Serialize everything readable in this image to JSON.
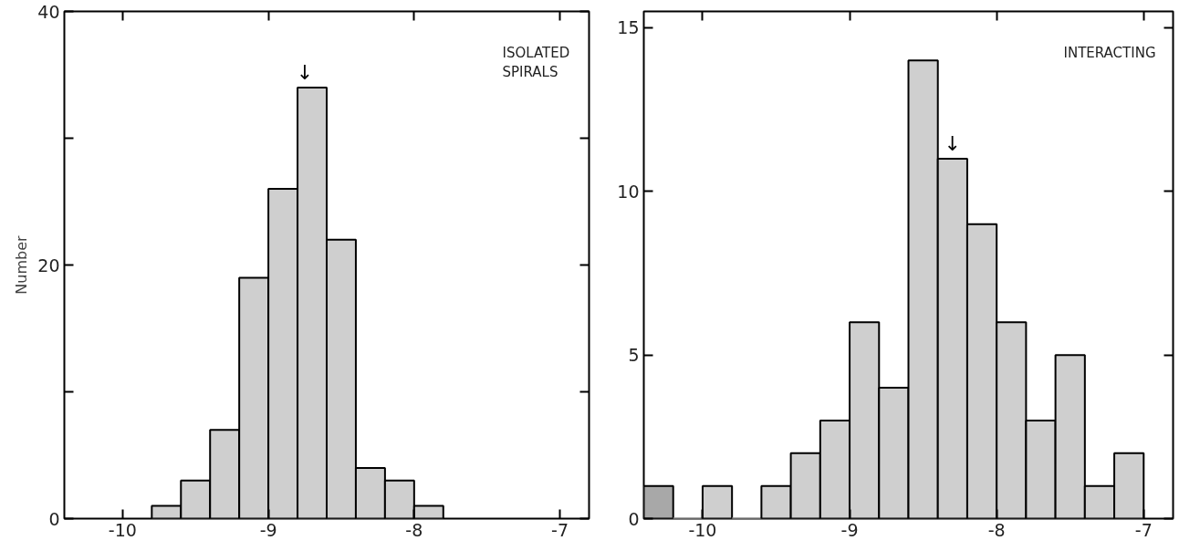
{
  "chart_data": [
    {
      "type": "histogram",
      "ylabel": "Number",
      "bins": [
        -9.8,
        -9.6,
        -9.4,
        -9.2,
        -9.0,
        -8.8,
        -8.6,
        -8.4,
        -8.2,
        -8.0,
        -7.8
      ],
      "values": [
        1,
        3,
        7,
        19,
        26,
        34,
        22,
        4,
        3,
        1
      ],
      "color": "#cfcfcf",
      "xlim": [
        -10.4,
        -6.8
      ],
      "ylim": [
        0,
        40
      ],
      "xticks": [
        -10,
        -9,
        -8,
        -7
      ],
      "yticks": [
        0,
        {
          "value": 10,
          "label": null
        },
        20,
        {
          "value": 30,
          "label": null
        },
        40
      ],
      "grid": false,
      "annotations": [
        "ISOLATED\nSPIRALS",
        {
          "text": "↓",
          "x": -8.75,
          "y": 34
        }
      ]
    },
    {
      "type": "histogram",
      "bins": [
        -10.4,
        -10.2,
        -10.0,
        -9.8,
        -9.6,
        -9.4,
        -9.2,
        -9.0,
        -8.8,
        -8.6,
        -8.4,
        -8.2,
        -8.0,
        -7.8,
        -7.6,
        -7.4,
        -7.2,
        -7.0
      ],
      "values": [
        1,
        0,
        1,
        0,
        1,
        2,
        3,
        6,
        4,
        14,
        11,
        9,
        6,
        3,
        5,
        1,
        2
      ],
      "colors": [
        "#a8a8a8",
        "#cfcfcf",
        "#cfcfcf",
        "#cfcfcf",
        "#cfcfcf",
        "#cfcfcf",
        "#cfcfcf",
        "#cfcfcf",
        "#cfcfcf",
        "#cfcfcf",
        "#cfcfcf",
        "#cfcfcf",
        "#cfcfcf",
        "#cfcfcf",
        "#cfcfcf",
        "#cfcfcf",
        "#cfcfcf"
      ],
      "xlim": [
        -10.4,
        -6.8
      ],
      "ylim": [
        0,
        15.5
      ],
      "xticks": [
        -10,
        -9,
        -8,
        -7
      ],
      "yticks": [
        0,
        5,
        10,
        15
      ],
      "grid": false,
      "annotations": [
        "INTERACTING",
        {
          "text": "↓",
          "x": -8.3,
          "y": 11
        }
      ]
    }
  ]
}
